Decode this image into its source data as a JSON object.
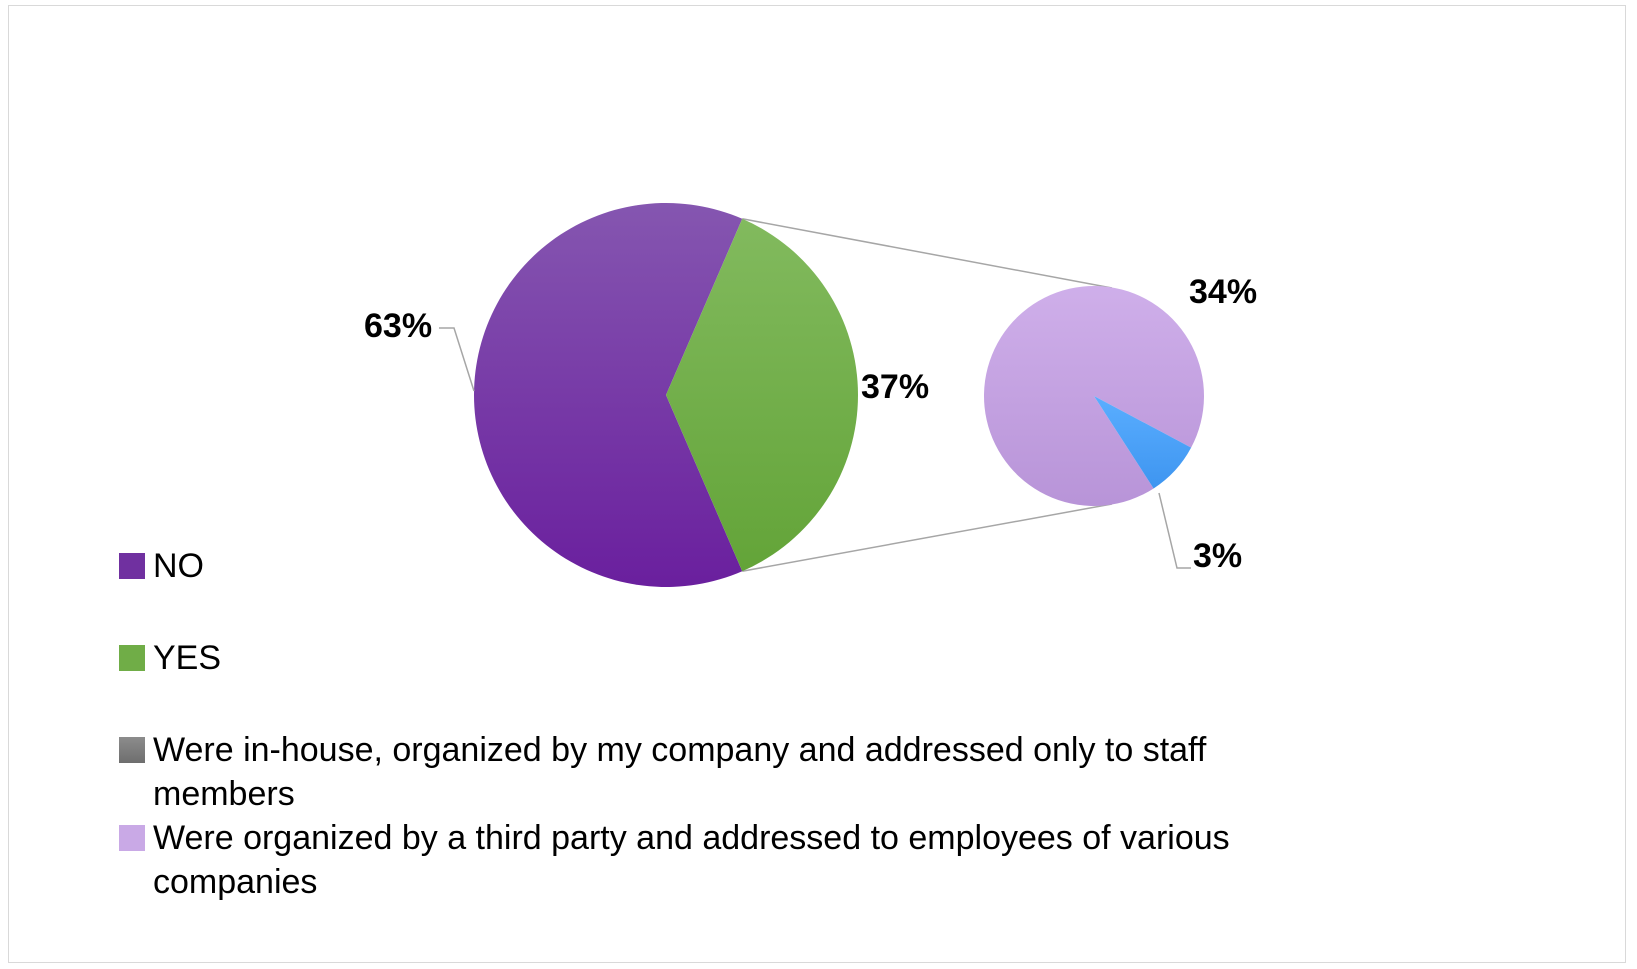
{
  "chart_data": {
    "type": "pie",
    "subtype": "pie-of-pie",
    "primary_pie": {
      "slices": [
        {
          "name": "NO",
          "value": 63,
          "label": "63%",
          "color": "#7030A0"
        },
        {
          "name": "YES",
          "value": 37,
          "label": "37%",
          "color": "#70AD47"
        }
      ]
    },
    "secondary_pie": {
      "breakdown_of": "YES",
      "slices": [
        {
          "name": "Were in-house, organized by my company and addressed only to staff members",
          "value": 3,
          "label": "3%",
          "color": "#4DA3FF"
        },
        {
          "name": "Were organized by a third party and addressed to employees of various companies",
          "value": 34,
          "label": "34%",
          "color": "#C9A9E6"
        }
      ]
    },
    "legend": {
      "placement": "bottom-left",
      "items": [
        {
          "label": "NO",
          "color": "#7030A0"
        },
        {
          "label": "YES",
          "color": "#70AD47"
        },
        {
          "label": "Were in-house, organized by my company and addressed only to staff members",
          "color": "#808080"
        },
        {
          "label": "Were organized by a third party and addressed to employees of various companies",
          "color": "#C9A9E6"
        }
      ]
    }
  }
}
